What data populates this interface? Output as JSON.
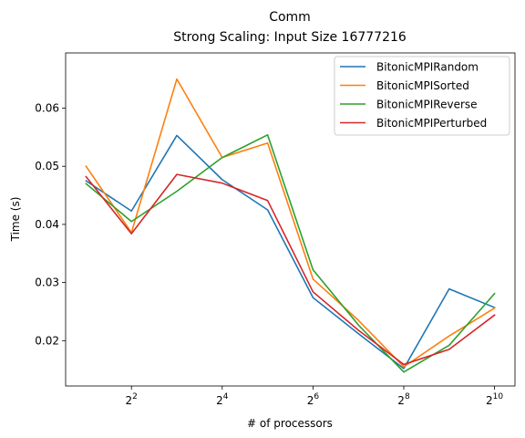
{
  "chart_data": {
    "type": "line",
    "title": "Comm",
    "subtitle": "Strong Scaling: Input Size 16777216",
    "xlabel": "# of processors",
    "ylabel": "Time (s)",
    "x_scale": "log2",
    "x": [
      2,
      4,
      8,
      16,
      32,
      64,
      128,
      256,
      512,
      1024
    ],
    "x_tick_values": [
      4,
      16,
      64,
      256,
      1024
    ],
    "x_ticks": [
      {
        "base": "2",
        "exp": "2"
      },
      {
        "base": "2",
        "exp": "4"
      },
      {
        "base": "2",
        "exp": "6"
      },
      {
        "base": "2",
        "exp": "8"
      },
      {
        "base": "2",
        "exp": "10"
      }
    ],
    "y_ticks": [
      0.02,
      0.03,
      0.04,
      0.05,
      0.06
    ],
    "y_tick_labels": [
      "0.02",
      "0.03",
      "0.04",
      "0.05",
      "0.06"
    ],
    "ylim": [
      0.0122,
      0.0695
    ],
    "grid": false,
    "legend_position": "top-right",
    "series": [
      {
        "name": "BitonicMPIRandom",
        "color": "#1f77b4",
        "values": [
          0.0475,
          0.0423,
          0.0553,
          0.0477,
          0.0425,
          0.0274,
          0.0212,
          0.0152,
          0.0289,
          0.0257
        ]
      },
      {
        "name": "BitonicMPISorted",
        "color": "#ff7f0e",
        "values": [
          0.05,
          0.0386,
          0.065,
          0.0515,
          0.054,
          0.0306,
          0.0235,
          0.0155,
          0.0208,
          0.0256
        ]
      },
      {
        "name": "BitonicMPIReverse",
        "color": "#2ca02c",
        "values": [
          0.047,
          0.0405,
          0.0457,
          0.0515,
          0.0554,
          0.0322,
          0.0227,
          0.0146,
          0.0192,
          0.0281
        ]
      },
      {
        "name": "BitonicMPIPerturbed",
        "color": "#d62728",
        "values": [
          0.0482,
          0.0384,
          0.0486,
          0.0471,
          0.0441,
          0.0284,
          0.0218,
          0.0159,
          0.0185,
          0.0244
        ]
      }
    ]
  }
}
